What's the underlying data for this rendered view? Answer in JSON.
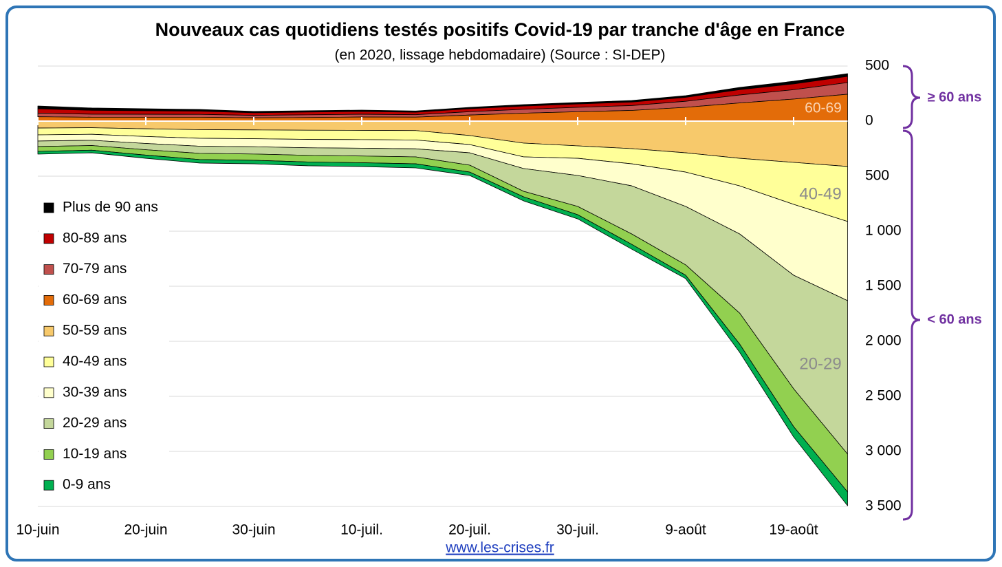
{
  "chart_data": {
    "type": "stacked_area",
    "title": "Nouveaux cas quotidiens testés positifs Covid-19 par tranche d'âge en France",
    "subtitle": "(en 2020, lissage hebdomadaire) (Source : SI-DEP)",
    "categories": [
      "10-juin",
      null,
      "20-juin",
      null,
      "30-juin",
      null,
      "10-juil.",
      null,
      "20-juil.",
      null,
      "30-juil.",
      null,
      "9-août",
      null,
      "19-août",
      null
    ],
    "series": [
      {
        "name": "Plus de 90 ans",
        "color": "#000000",
        "values": [
          25,
          21,
          18,
          16,
          12,
          12,
          12,
          11,
          12,
          13,
          13,
          14,
          15,
          21,
          24,
          25
        ]
      },
      {
        "name": "80-89 ans",
        "color": "#c00000",
        "values": [
          40,
          35,
          32,
          29,
          24,
          25,
          26,
          23,
          28,
          30,
          31,
          32,
          36,
          48,
          53,
          56
        ]
      },
      {
        "name": "70-79 ans",
        "color": "#c0504d",
        "values": [
          32,
          28,
          27,
          26,
          22,
          24,
          25,
          22,
          30,
          35,
          40,
          44,
          55,
          72,
          85,
          106
        ]
      },
      {
        "name": "60-69 ans",
        "color": "#e36c09",
        "values": [
          40,
          35,
          35,
          35,
          30,
          33,
          37,
          36,
          55,
          72,
          85,
          97,
          125,
          165,
          200,
          244
        ]
      },
      {
        "name": "50-59 ans",
        "color": "#f7c96b",
        "values": [
          -63,
          -60,
          -70,
          -78,
          -80,
          -83,
          -84,
          -86,
          -131,
          -200,
          -225,
          -250,
          -288,
          -338,
          -375,
          -412
        ]
      },
      {
        "name": "40-49 ans",
        "color": "#ffff99",
        "values": [
          -62,
          -60,
          -70,
          -78,
          -80,
          -83,
          -84,
          -86,
          -82,
          -125,
          -113,
          -138,
          -175,
          -250,
          -381,
          -500
        ]
      },
      {
        "name": "30-39 ans",
        "color": "#ffffcc",
        "values": [
          -56,
          -54,
          -63,
          -72,
          -73,
          -76,
          -78,
          -80,
          -75,
          -106,
          -156,
          -200,
          -312,
          -437,
          -644,
          -719
        ]
      },
      {
        "name": "20-29 ans",
        "color": "#c4d79b",
        "values": [
          -50,
          -48,
          -57,
          -65,
          -66,
          -69,
          -71,
          -73,
          -112,
          -207,
          -281,
          -437,
          -531,
          -719,
          -1031,
          -1394
        ]
      },
      {
        "name": "10-19 ans",
        "color": "#92d050",
        "values": [
          -44,
          -42,
          -49,
          -56,
          -57,
          -60,
          -61,
          -63,
          -63,
          -50,
          -75,
          -94,
          -94,
          -281,
          -344,
          -344
        ]
      },
      {
        "name": "0-9 ans",
        "color": "#00b050",
        "values": [
          -25,
          -24,
          -29,
          -32,
          -32,
          -35,
          -35,
          -37,
          -31,
          -37,
          -38,
          -44,
          -31,
          -75,
          -94,
          -125
        ]
      }
    ],
    "ylim": [
      -3500,
      500
    ],
    "yticks": [
      500,
      0,
      {
        "value": -500,
        "label": "500"
      },
      {
        "value": -1000,
        "label": "1 000"
      },
      {
        "value": -1500,
        "label": "1 500"
      },
      {
        "value": -2000,
        "label": "2 000"
      },
      {
        "value": -2500,
        "label": "2 500"
      },
      {
        "value": -3000,
        "label": "3 000"
      },
      {
        "value": -3500,
        "label": "3 500"
      }
    ],
    "grid": true,
    "legend": "left",
    "annotations": [
      "60-69",
      "40-49",
      "20-29",
      "≥ 60 ans",
      "< 60 ans"
    ],
    "footer": "www.les-crises.fr"
  }
}
